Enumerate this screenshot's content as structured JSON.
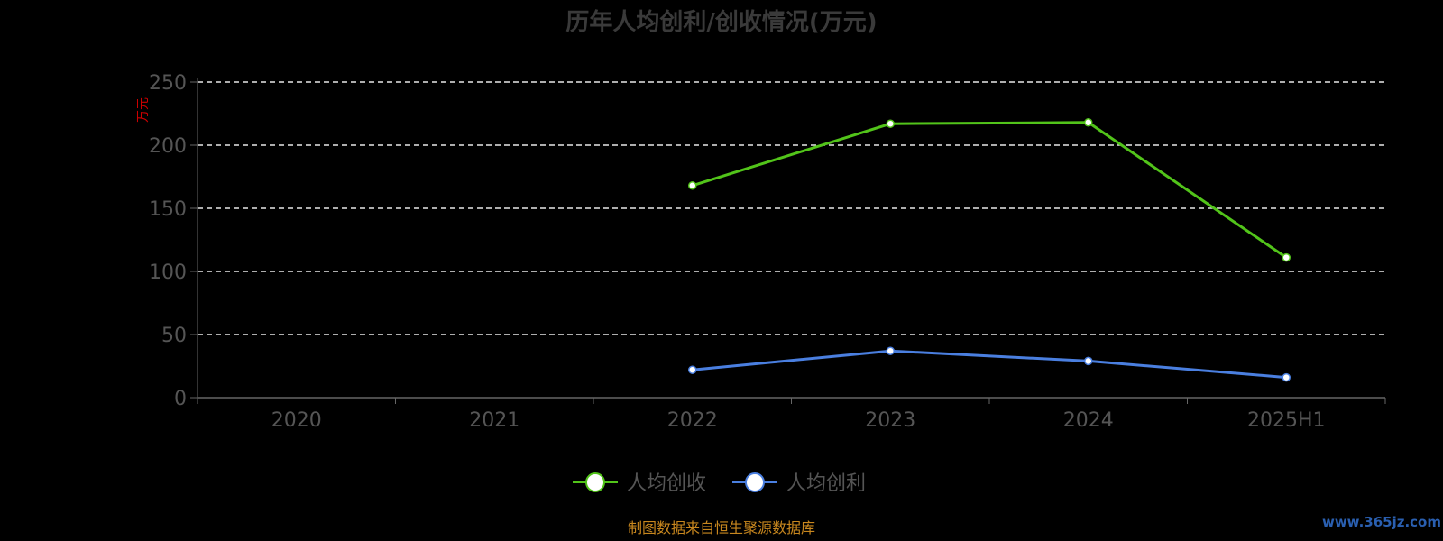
{
  "chart_data": {
    "type": "line",
    "title": "历年人均创利/创收情况(万元)",
    "ylabel": "万元",
    "categories": [
      "2020",
      "2021",
      "2022",
      "2023",
      "2024",
      "2025H1"
    ],
    "ylim": [
      0,
      250
    ],
    "yticks": [
      0,
      50,
      100,
      150,
      200,
      250
    ],
    "grid": true,
    "legend_position": "bottom",
    "series": [
      {
        "name": "人均创收",
        "color": "#52c41a",
        "values": [
          null,
          null,
          168,
          217,
          218,
          111
        ]
      },
      {
        "name": "人均创利",
        "color": "#4a7fe0",
        "values": [
          null,
          null,
          22,
          37,
          29,
          16
        ]
      }
    ]
  },
  "footer": {
    "source": "制图数据来自恒生聚源数据库",
    "watermark": "www.365jz.com"
  }
}
